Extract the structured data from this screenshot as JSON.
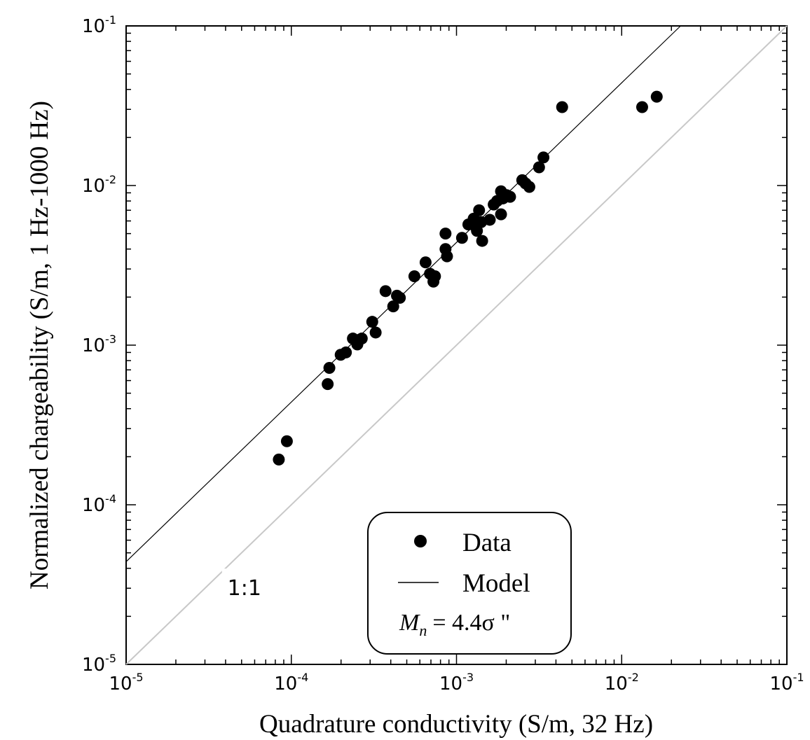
{
  "chart_data": {
    "type": "scatter",
    "xlabel": "Quadrature conductivity (S/m, 32 Hz)",
    "ylabel": "Normalized chargeability (S/m, 1 Hz-1000 Hz)",
    "xscale": "log",
    "yscale": "log",
    "xlim": [
      1e-05,
      0.1
    ],
    "ylim": [
      1e-05,
      0.1
    ],
    "grid": false,
    "legend_position": "bottom-center",
    "x_ticks": [
      {
        "value": 1e-05,
        "base": "10",
        "exp": "-5"
      },
      {
        "value": 0.0001,
        "base": "10",
        "exp": "-4"
      },
      {
        "value": 0.001,
        "base": "10",
        "exp": "-3"
      },
      {
        "value": 0.01,
        "base": "10",
        "exp": "-2"
      },
      {
        "value": 0.1,
        "base": "10",
        "exp": "-1"
      }
    ],
    "y_ticks": [
      {
        "value": 1e-05,
        "base": "10",
        "exp": "-5"
      },
      {
        "value": 0.0001,
        "base": "10",
        "exp": "-4"
      },
      {
        "value": 0.001,
        "base": "10",
        "exp": "-3"
      },
      {
        "value": 0.01,
        "base": "10",
        "exp": "-2"
      },
      {
        "value": 0.1,
        "base": "10",
        "exp": "-1"
      }
    ],
    "series": [
      {
        "name": "Data",
        "kind": "scatter",
        "color": "#000000",
        "points": [
          [
            8.4e-05,
            0.000192
          ],
          [
            9.4e-05,
            0.00025
          ],
          [
            0.000166,
            0.00057
          ],
          [
            0.00017,
            0.00072
          ],
          [
            0.000199,
            0.00087
          ],
          [
            0.000214,
            0.0009
          ],
          [
            0.000236,
            0.0011
          ],
          [
            0.000251,
            0.00101
          ],
          [
            0.000258,
            0.00108
          ],
          [
            0.000267,
            0.0011
          ],
          [
            0.000309,
            0.0014
          ],
          [
            0.000324,
            0.0012
          ],
          [
            0.000372,
            0.00218
          ],
          [
            0.000414,
            0.00175
          ],
          [
            0.000436,
            0.00204
          ],
          [
            0.000454,
            0.00198
          ],
          [
            0.000556,
            0.0027
          ],
          [
            0.00065,
            0.0033
          ],
          [
            0.000691,
            0.0028
          ],
          [
            0.000725,
            0.0025
          ],
          [
            0.000741,
            0.0027
          ],
          [
            0.000858,
            0.005
          ],
          [
            0.000858,
            0.004
          ],
          [
            0.000876,
            0.0036
          ],
          [
            0.00108,
            0.0047
          ],
          [
            0.00118,
            0.0057
          ],
          [
            0.00127,
            0.0062
          ],
          [
            0.00129,
            0.0056
          ],
          [
            0.00133,
            0.0052
          ],
          [
            0.00137,
            0.007
          ],
          [
            0.00141,
            0.0059
          ],
          [
            0.00143,
            0.0045
          ],
          [
            0.00159,
            0.0061
          ],
          [
            0.00168,
            0.0076
          ],
          [
            0.00176,
            0.008
          ],
          [
            0.00186,
            0.0092
          ],
          [
            0.00186,
            0.0066
          ],
          [
            0.00191,
            0.0083
          ],
          [
            0.00201,
            0.0087
          ],
          [
            0.00211,
            0.0085
          ],
          [
            0.0025,
            0.0108
          ],
          [
            0.00262,
            0.0103
          ],
          [
            0.00276,
            0.0098
          ],
          [
            0.00316,
            0.013
          ],
          [
            0.00336,
            0.015
          ],
          [
            0.00436,
            0.031
          ],
          [
            0.0133,
            0.031
          ],
          [
            0.0163,
            0.036
          ]
        ]
      },
      {
        "name": "Model",
        "kind": "line",
        "color": "#000000",
        "slope_factor": 4.4,
        "x_range": [
          1e-05,
          0.0227
        ]
      },
      {
        "name": "1:1",
        "kind": "line",
        "color": "#c8c8c8",
        "slope_factor": 1,
        "x_range": [
          1e-05,
          0.1
        ]
      }
    ],
    "annotations": [
      {
        "text": "1:1",
        "x": 5.2e-05,
        "y": 3e-05
      }
    ],
    "legend": {
      "entries": [
        {
          "label": "Data",
          "marker": "dot"
        },
        {
          "label": "Model",
          "marker": "line"
        }
      ],
      "formula": {
        "lhs": "M",
        "sub": "n",
        "rhs": "= 4.4σ \""
      }
    }
  }
}
